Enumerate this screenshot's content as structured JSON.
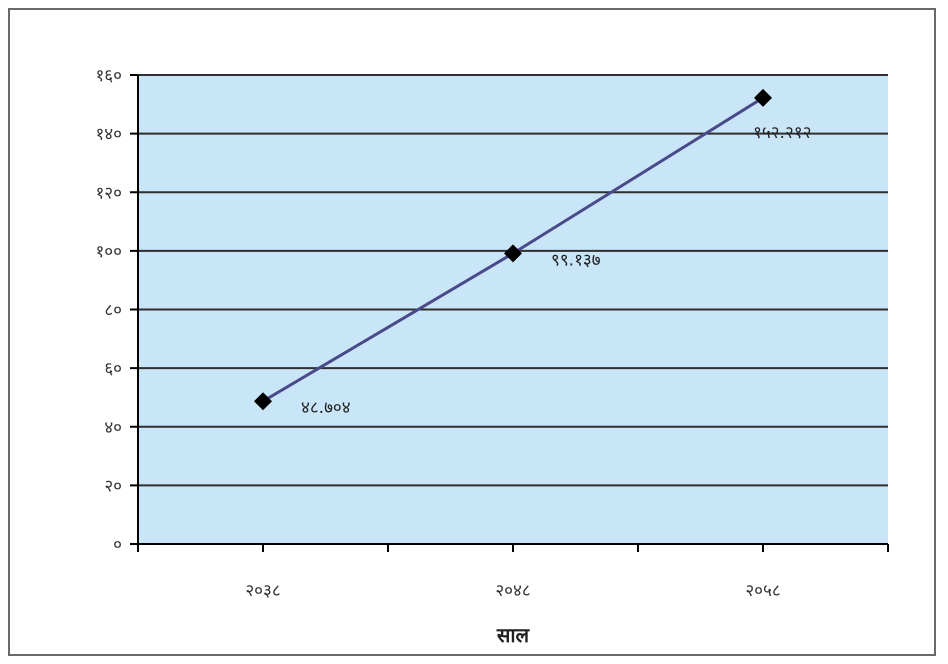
{
  "chart_data": {
    "type": "line",
    "title": "",
    "xlabel": "साल",
    "ylabel": "",
    "categories": [
      "२०३८",
      "२०४८",
      "२०५८"
    ],
    "series": [
      {
        "values": [
          48.704,
          99.137,
          152.212
        ]
      }
    ],
    "data_labels": [
      "४८.७०४",
      "९९.१३७",
      "१५२.२१२"
    ],
    "yticks": [
      0,
      20,
      40,
      60,
      80,
      100,
      120,
      140,
      160
    ],
    "ytick_labels": [
      "०",
      "२०",
      "४०",
      "६०",
      "८०",
      "१००",
      "१२०",
      "१४०",
      "१६०"
    ],
    "ylim": [
      0,
      160
    ],
    "grid": true,
    "legend": "none",
    "colors": {
      "plot_bg": "#c8e6f8",
      "gridline": "#2f2f2f",
      "line": "#4a4a8a",
      "marker": "#000000"
    }
  }
}
